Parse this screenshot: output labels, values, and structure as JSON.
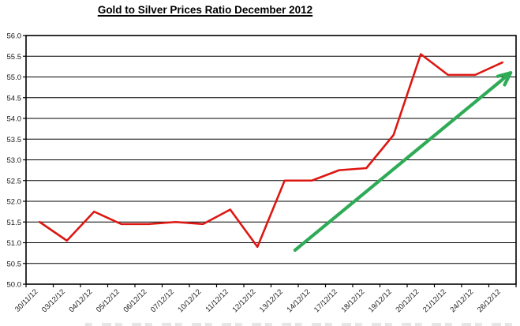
{
  "page": {
    "background": "#ffffff"
  },
  "chart_data": {
    "type": "line",
    "title": "Gold to Silver Prices Ratio December 2012",
    "categories": [
      "30/11/12",
      "03/12/12",
      "04/12/12",
      "05/12/12",
      "06/12/12",
      "07/12/12",
      "10/12/12",
      "11/12/12",
      "12/12/12",
      "13/12/12",
      "14/12/12",
      "17/12/12",
      "18/12/12",
      "19/12/12",
      "20/12/12",
      "21/12/12",
      "24/12/12",
      "26/12/12"
    ],
    "series": [
      {
        "color": "#dd1712",
        "values": [
          51.5,
          51.05,
          51.75,
          51.45,
          51.45,
          51.5,
          51.45,
          51.8,
          50.9,
          52.5,
          52.5,
          52.75,
          52.8,
          53.6,
          55.55,
          55.05,
          55.05,
          55.35
        ]
      }
    ],
    "xlabel": "",
    "ylabel": "",
    "ylim": [
      50.0,
      56.0
    ],
    "y_tick_step": 0.5,
    "y_ticks": [
      "56.0",
      "55.5",
      "55.0",
      "54.5",
      "54.0",
      "53.5",
      "53.0",
      "52.5",
      "52.0",
      "51.5",
      "51.0",
      "50.5",
      "50.0"
    ],
    "grid": "horizontal-black",
    "legend": "none",
    "annotations": [
      {
        "type": "trend-arrow",
        "color": "#2fab57",
        "from": {
          "cat": 10.38,
          "value": 50.82
        },
        "to": {
          "cat": 18.3,
          "value": 55.1
        }
      }
    ],
    "colors": {
      "line": "#dd1712",
      "arrow": "#2fab57",
      "grid": "#000000",
      "border": "#000000",
      "tick_text": "#1a1a1a"
    }
  }
}
